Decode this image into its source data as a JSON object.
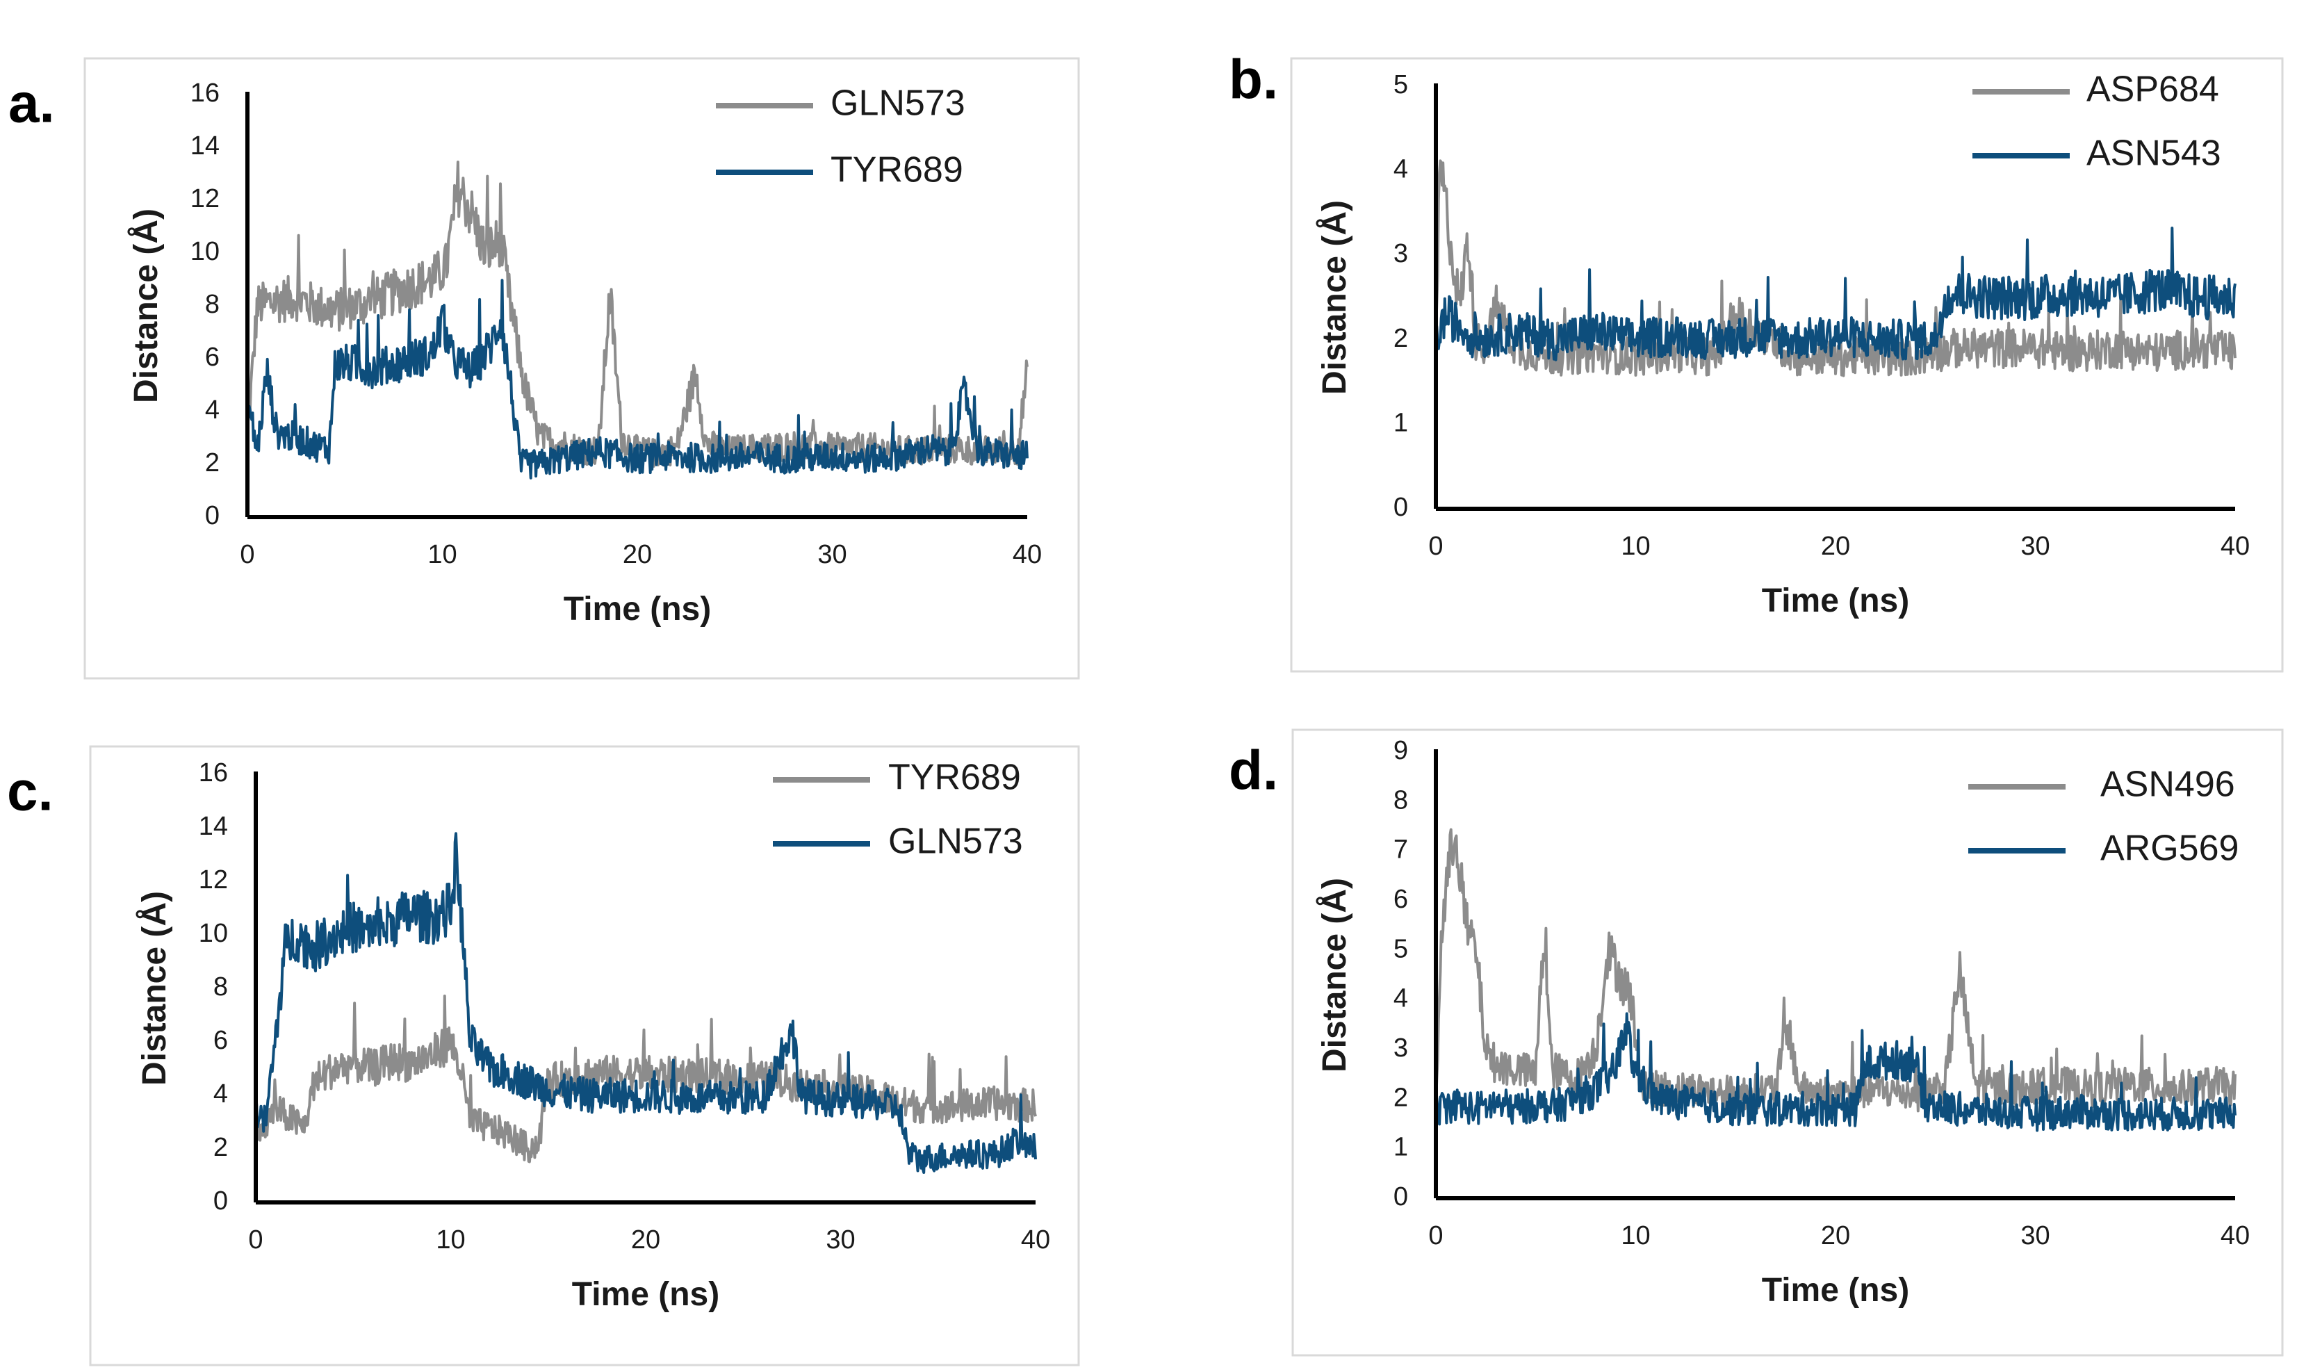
{
  "figure": {
    "colors": {
      "gray": "#8c8c8c",
      "blue": "#0e4e7c",
      "axis": "#000000",
      "frame": "#d9d9d9"
    }
  },
  "chart_data": [
    {
      "panel": "a.",
      "type": "line",
      "xlabel": "Time (ns)",
      "ylabel": "Distance (Å)",
      "xlim": [
        0,
        40
      ],
      "ylim": [
        0,
        16
      ],
      "xticks": [
        0,
        10,
        20,
        30,
        40
      ],
      "yticks": [
        0,
        2,
        4,
        6,
        8,
        10,
        12,
        14,
        16
      ],
      "legend_position": "top-right",
      "series": [
        {
          "name": "GLN573",
          "color": "#8c8c8c",
          "x": [
            0,
            0.5,
            1.5,
            2.5,
            3.5,
            4.5,
            5.5,
            6.5,
            7.5,
            8.5,
            9.5,
            10.2,
            10.8,
            11.5,
            12.2,
            13.0,
            13.5,
            14.2,
            15.0,
            16.0,
            17.0,
            18.0,
            18.6,
            19.2,
            20.0,
            21.0,
            22.0,
            23.0,
            23.5,
            24.5,
            26.0,
            28.0,
            30.0,
            32.0,
            34.0,
            36.0,
            38.0,
            39.5,
            40.0
          ],
          "y": [
            3.0,
            8.0,
            8.2,
            8.3,
            8.0,
            7.8,
            8.0,
            8.2,
            8.5,
            8.8,
            9.0,
            9.5,
            12.5,
            11.5,
            10.0,
            10.5,
            8.0,
            5.0,
            3.0,
            2.8,
            2.6,
            2.5,
            8.5,
            3.0,
            2.5,
            2.4,
            2.6,
            5.5,
            2.8,
            2.5,
            2.6,
            2.7,
            2.6,
            2.6,
            2.5,
            2.6,
            2.5,
            2.5,
            5.5
          ]
        },
        {
          "name": "TYR689",
          "color": "#0e4e7c",
          "x": [
            0,
            0.5,
            1.0,
            1.5,
            2.5,
            3.5,
            4.2,
            4.5,
            5.5,
            6.5,
            7.5,
            8.5,
            9.5,
            10.0,
            10.5,
            11.5,
            12.5,
            13.0,
            13.5,
            14.0,
            15.0,
            16.0,
            18.0,
            20.0,
            22.0,
            24.0,
            26.0,
            28.0,
            30.0,
            32.0,
            34.0,
            35.0,
            36.0,
            36.8,
            37.5,
            38.5,
            40.0
          ],
          "y": [
            4.5,
            2.5,
            5.5,
            3.2,
            3.0,
            2.7,
            2.6,
            5.8,
            5.8,
            5.6,
            5.8,
            6.0,
            6.2,
            7.5,
            6.0,
            5.5,
            6.5,
            7.5,
            5.0,
            2.0,
            2.0,
            2.2,
            2.5,
            2.2,
            2.3,
            2.2,
            2.3,
            2.2,
            2.3,
            2.2,
            2.4,
            2.6,
            2.4,
            4.8,
            2.5,
            2.4,
            2.3
          ]
        }
      ]
    },
    {
      "panel": "b.",
      "type": "line",
      "xlabel": "Time (ns)",
      "ylabel": "Distance (Å)",
      "xlim": [
        0,
        40
      ],
      "ylim": [
        0,
        5
      ],
      "xticks": [
        0,
        10,
        20,
        30,
        40
      ],
      "yticks": [
        0,
        1,
        2,
        3,
        4,
        5
      ],
      "legend_position": "top-right",
      "series": [
        {
          "name": "ASP684",
          "color": "#8c8c8c",
          "x": [
            0,
            0.2,
            0.5,
            0.8,
            1.2,
            1.6,
            2.0,
            2.5,
            3.0,
            4.0,
            6.0,
            8.0,
            10.0,
            12.0,
            14.0,
            15.0,
            18.0,
            20.0,
            22.0,
            24.0,
            25.0,
            26.0,
            28.0,
            30.0,
            32.0,
            34.0,
            36.0,
            38.0,
            40.0
          ],
          "y": [
            1.9,
            4.1,
            3.6,
            3.0,
            2.4,
            3.2,
            2.0,
            1.9,
            2.4,
            1.9,
            1.8,
            1.85,
            1.8,
            1.85,
            1.8,
            2.3,
            1.8,
            1.8,
            1.8,
            1.8,
            1.85,
            1.9,
            1.9,
            1.9,
            1.85,
            1.9,
            1.85,
            1.9,
            1.85
          ]
        },
        {
          "name": "ASN543",
          "color": "#0e4e7c",
          "x": [
            0,
            0.5,
            2.0,
            4.0,
            6.0,
            8.0,
            10.0,
            12.0,
            14.0,
            16.0,
            18.0,
            20.0,
            22.0,
            24.0,
            25.0,
            25.5,
            26.0,
            28.0,
            30.0,
            32.0,
            34.0,
            36.0,
            38.0,
            40.0
          ],
          "y": [
            2.0,
            2.3,
            2.0,
            2.1,
            2.0,
            2.1,
            2.0,
            2.05,
            2.0,
            2.05,
            2.0,
            2.05,
            2.0,
            2.0,
            2.0,
            2.5,
            2.55,
            2.5,
            2.5,
            2.55,
            2.5,
            2.6,
            2.5,
            2.5
          ]
        }
      ]
    },
    {
      "panel": "c.",
      "type": "line",
      "xlabel": "Time (ns)",
      "ylabel": "Distance (Å)",
      "xlim": [
        0,
        40
      ],
      "ylim": [
        0,
        16
      ],
      "xticks": [
        0,
        10,
        20,
        30,
        40
      ],
      "yticks": [
        0,
        2,
        4,
        6,
        8,
        10,
        12,
        14,
        16
      ],
      "legend_position": "top-right",
      "series": [
        {
          "name": "TYR689",
          "color": "#8c8c8c",
          "x": [
            0,
            0.5,
            1.0,
            2.0,
            2.5,
            3.0,
            4.0,
            5.0,
            6.0,
            7.0,
            8.0,
            9.0,
            10.0,
            10.5,
            11.0,
            12.0,
            13.0,
            14.0,
            14.5,
            15.0,
            17.0,
            20.0,
            23.0,
            26.0,
            28.0,
            30.0,
            32.0,
            33.0,
            34.0,
            36.0,
            38.0,
            40.0
          ],
          "y": [
            3.0,
            2.8,
            3.5,
            3.0,
            2.8,
            4.5,
            5.0,
            5.2,
            5.0,
            5.3,
            5.2,
            5.5,
            6.0,
            5.0,
            3.0,
            2.8,
            2.5,
            2.0,
            2.2,
            4.5,
            4.8,
            4.8,
            4.7,
            4.6,
            4.4,
            4.2,
            4.0,
            3.7,
            3.6,
            3.6,
            3.7,
            3.6
          ]
        },
        {
          "name": "GLN573",
          "color": "#0e4e7c",
          "x": [
            0,
            0.5,
            1.0,
            1.5,
            2.0,
            3.0,
            4.0,
            5.0,
            6.0,
            7.0,
            8.0,
            9.0,
            10.0,
            10.3,
            10.6,
            11.0,
            12.0,
            13.0,
            14.0,
            15.0,
            17.0,
            20.0,
            23.0,
            26.0,
            27.5,
            28.0,
            30.0,
            32.0,
            33.0,
            33.5,
            34.0,
            36.0,
            38.0,
            39.0,
            40.0
          ],
          "y": [
            3.5,
            3.0,
            6.0,
            9.5,
            10.0,
            9.5,
            10.0,
            10.3,
            10.0,
            10.5,
            10.8,
            10.6,
            11.0,
            13.0,
            10.0,
            6.0,
            5.0,
            4.8,
            4.5,
            4.2,
            4.0,
            4.0,
            3.9,
            3.9,
            6.5,
            4.0,
            3.8,
            3.7,
            3.5,
            1.8,
            1.6,
            1.8,
            1.8,
            2.3,
            2.0
          ]
        }
      ]
    },
    {
      "panel": "d.",
      "type": "line",
      "xlabel": "Time (ns)",
      "ylabel": "Distance (Å)",
      "xlim": [
        0,
        40
      ],
      "ylim": [
        0,
        9
      ],
      "xticks": [
        0,
        10,
        20,
        30,
        40
      ],
      "yticks": [
        0,
        1,
        2,
        3,
        4,
        5,
        6,
        7,
        8,
        9
      ],
      "legend_position": "top-right",
      "series": [
        {
          "name": "ASN496",
          "color": "#8c8c8c",
          "x": [
            0,
            0.3,
            0.6,
            1.0,
            1.5,
            2.0,
            2.5,
            3.0,
            4.0,
            5.0,
            5.4,
            5.8,
            7.0,
            8.0,
            8.6,
            9.2,
            9.8,
            10.2,
            11.0,
            13.0,
            15.0,
            17.0,
            17.6,
            18.2,
            20.0,
            22.0,
            24.0,
            25.5,
            26.2,
            27.0,
            29.0,
            31.0,
            33.0,
            35.0,
            37.0,
            39.0,
            40.0
          ],
          "y": [
            2.0,
            5.5,
            6.5,
            7.5,
            5.5,
            5.0,
            3.0,
            2.7,
            2.6,
            2.5,
            5.3,
            2.6,
            2.4,
            3.0,
            5.0,
            4.5,
            4.0,
            2.4,
            2.2,
            2.2,
            2.1,
            2.2,
            3.5,
            2.2,
            2.1,
            2.2,
            2.1,
            2.3,
            4.6,
            2.3,
            2.2,
            2.3,
            2.2,
            2.3,
            2.2,
            2.3,
            2.2
          ]
        },
        {
          "name": "ARG569",
          "color": "#0e4e7c",
          "x": [
            0,
            1.0,
            2.0,
            3.0,
            4.0,
            5.0,
            6.0,
            7.0,
            8.0,
            9.0,
            9.5,
            10.0,
            11.0,
            13.0,
            15.0,
            17.0,
            19.0,
            21.0,
            21.5,
            23.0,
            24.0,
            24.5,
            26.0,
            28.0,
            30.0,
            32.0,
            34.0,
            36.0,
            38.0,
            40.0
          ],
          "y": [
            1.8,
            1.9,
            1.8,
            1.9,
            1.8,
            1.9,
            1.85,
            2.0,
            2.2,
            2.6,
            3.5,
            2.5,
            2.0,
            1.9,
            1.8,
            1.8,
            1.8,
            1.8,
            2.7,
            2.8,
            2.7,
            1.9,
            1.8,
            1.75,
            1.7,
            1.75,
            1.7,
            1.7,
            1.7,
            1.7
          ]
        }
      ]
    }
  ]
}
